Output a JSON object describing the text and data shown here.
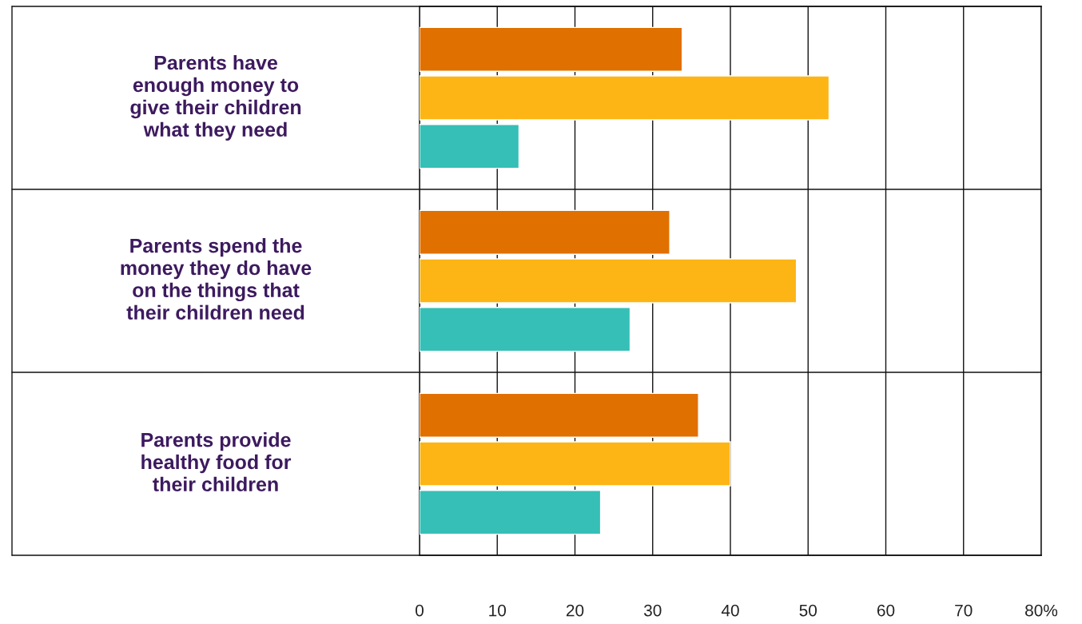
{
  "chart_data": {
    "type": "bar",
    "orientation": "horizontal",
    "categories": [
      "Parents have\nenough money to\ngive their children\nwhat they need",
      "Parents spend the\nmoney they do have\non the things that\ntheir children need",
      "Parents provide\nhealthy food for\ntheir children"
    ],
    "series": [
      {
        "color": "#e07000",
        "values": [
          33.8,
          32.2,
          35.9
        ]
      },
      {
        "color": "#fdb515",
        "values": [
          52.7,
          48.5,
          40.0
        ]
      },
      {
        "color": "#35bfb6",
        "values": [
          12.8,
          27.1,
          23.3
        ]
      }
    ],
    "xlim": [
      0,
      80
    ],
    "xticks": [
      0,
      10,
      20,
      30,
      40,
      50,
      60,
      70,
      {
        "value": 80,
        "label": "80%"
      }
    ],
    "grid": "x"
  }
}
